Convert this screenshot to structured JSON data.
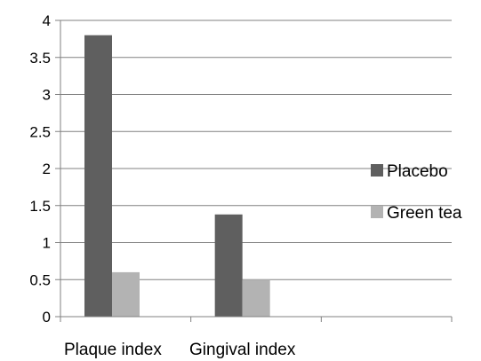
{
  "chart_data": {
    "type": "bar",
    "categories": [
      "Plaque index",
      "Gingival index"
    ],
    "series": [
      {
        "name": "Placebo",
        "values": [
          3.8,
          1.38
        ],
        "color": "#5f5f5f"
      },
      {
        "name": "Green tea",
        "values": [
          0.6,
          0.5
        ],
        "color": "#b3b3b3"
      }
    ],
    "ylim": [
      0,
      4
    ],
    "yticks": [
      "0",
      "0.5",
      "1",
      "1.5",
      "2",
      "2.5",
      "3",
      "3.5",
      "4"
    ],
    "grid": true,
    "legend_position": "right",
    "axis_color": "#808080",
    "grid_color": "#808080"
  }
}
